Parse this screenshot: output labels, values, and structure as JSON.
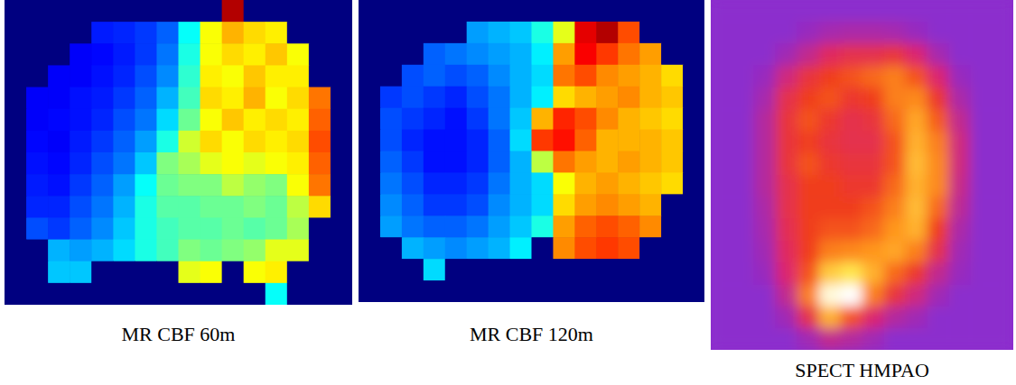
{
  "chart_data": [
    {
      "type": "heatmap",
      "title": "MR CBF 60m",
      "tick_labels": false,
      "color_range": [
        0,
        100
      ],
      "cells": [
        [
          0,
          0,
          0,
          0,
          0,
          0,
          0,
          0,
          0,
          0,
          95,
          0,
          0,
          0,
          0,
          0
        ],
        [
          0,
          0,
          0,
          0,
          15,
          16,
          18,
          22,
          38,
          62,
          70,
          66,
          64,
          0,
          0,
          0
        ],
        [
          0,
          0,
          0,
          12,
          13,
          15,
          18,
          24,
          40,
          62,
          66,
          64,
          68,
          62,
          0,
          0
        ],
        [
          0,
          0,
          12,
          12,
          14,
          16,
          20,
          26,
          42,
          64,
          62,
          68,
          64,
          64,
          0,
          0
        ],
        [
          0,
          12,
          12,
          14,
          15,
          18,
          22,
          30,
          44,
          66,
          64,
          70,
          62,
          66,
          76,
          0
        ],
        [
          0,
          12,
          13,
          14,
          16,
          20,
          24,
          34,
          48,
          62,
          68,
          64,
          66,
          64,
          78,
          0
        ],
        [
          0,
          13,
          12,
          15,
          18,
          22,
          28,
          40,
          58,
          66,
          62,
          66,
          64,
          66,
          80,
          0
        ],
        [
          0,
          14,
          13,
          16,
          20,
          24,
          32,
          50,
          54,
          60,
          62,
          60,
          62,
          64,
          78,
          0
        ],
        [
          0,
          15,
          14,
          18,
          22,
          28,
          38,
          48,
          50,
          50,
          56,
          52,
          50,
          62,
          76,
          0
        ],
        [
          0,
          16,
          16,
          20,
          24,
          30,
          40,
          46,
          46,
          48,
          48,
          50,
          48,
          56,
          66,
          0
        ],
        [
          0,
          20,
          18,
          22,
          26,
          32,
          40,
          44,
          46,
          46,
          48,
          46,
          48,
          54,
          0,
          0
        ],
        [
          0,
          0,
          30,
          28,
          30,
          34,
          40,
          44,
          50,
          48,
          50,
          52,
          60,
          60,
          0,
          0
        ],
        [
          0,
          0,
          32,
          32,
          0,
          0,
          0,
          0,
          60,
          62,
          0,
          62,
          64,
          0,
          0,
          0
        ],
        [
          0,
          0,
          0,
          0,
          0,
          0,
          0,
          0,
          0,
          0,
          0,
          0,
          38,
          0,
          0,
          0
        ]
      ]
    },
    {
      "type": "heatmap",
      "title": "MR CBF 120m",
      "tick_labels": false,
      "color_range": [
        0,
        100
      ],
      "cells": [
        [
          0,
          0,
          0,
          0,
          0,
          0,
          0,
          0,
          0,
          0,
          0,
          0,
          0,
          0,
          0,
          0
        ],
        [
          0,
          0,
          0,
          0,
          0,
          28,
          30,
          32,
          40,
          60,
          90,
          95,
          80,
          0,
          0,
          0
        ],
        [
          0,
          0,
          0,
          22,
          24,
          26,
          28,
          30,
          36,
          72,
          88,
          82,
          76,
          72,
          0,
          0
        ],
        [
          0,
          0,
          20,
          22,
          20,
          22,
          26,
          30,
          34,
          76,
          80,
          74,
          72,
          70,
          66,
          0
        ],
        [
          0,
          18,
          20,
          18,
          16,
          20,
          24,
          30,
          36,
          66,
          70,
          72,
          74,
          70,
          68,
          0
        ],
        [
          0,
          20,
          18,
          16,
          14,
          18,
          24,
          32,
          70,
          84,
          80,
          74,
          70,
          68,
          66,
          0
        ],
        [
          0,
          20,
          16,
          14,
          14,
          16,
          22,
          34,
          82,
          86,
          78,
          70,
          70,
          70,
          68,
          0
        ],
        [
          0,
          22,
          18,
          14,
          14,
          16,
          22,
          30,
          56,
          76,
          72,
          70,
          72,
          70,
          68,
          0
        ],
        [
          0,
          24,
          20,
          16,
          16,
          18,
          24,
          30,
          34,
          62,
          70,
          72,
          70,
          68,
          66,
          0
        ],
        [
          0,
          26,
          22,
          18,
          18,
          20,
          26,
          30,
          34,
          66,
          72,
          74,
          72,
          70,
          0,
          0
        ],
        [
          0,
          28,
          24,
          22,
          22,
          24,
          28,
          32,
          40,
          72,
          78,
          80,
          78,
          74,
          0,
          0
        ],
        [
          0,
          0,
          30,
          28,
          26,
          28,
          30,
          36,
          0,
          74,
          80,
          82,
          80,
          0,
          0,
          0
        ],
        [
          0,
          0,
          0,
          34,
          0,
          0,
          0,
          0,
          0,
          0,
          0,
          0,
          0,
          0,
          0,
          0
        ],
        [
          0,
          0,
          0,
          0,
          0,
          0,
          0,
          0,
          0,
          0,
          0,
          0,
          0,
          0,
          0,
          0
        ]
      ]
    },
    {
      "type": "heatmap",
      "title": "SPECT HMPAO",
      "tick_labels": false,
      "color_range": [
        0,
        100
      ],
      "cells": [
        [
          0,
          0,
          0,
          0,
          0,
          0,
          0,
          0,
          0,
          0,
          0,
          0,
          0,
          0
        ],
        [
          0,
          0,
          0,
          0,
          5,
          10,
          12,
          12,
          10,
          5,
          0,
          0,
          0,
          0
        ],
        [
          0,
          0,
          0,
          8,
          20,
          35,
          40,
          40,
          45,
          30,
          10,
          0,
          0,
          0
        ],
        [
          0,
          0,
          5,
          25,
          45,
          55,
          60,
          65,
          70,
          60,
          30,
          5,
          0,
          0
        ],
        [
          0,
          0,
          10,
          40,
          55,
          60,
          50,
          55,
          70,
          72,
          50,
          12,
          0,
          0
        ],
        [
          0,
          0,
          15,
          45,
          60,
          50,
          40,
          45,
          65,
          78,
          62,
          20,
          0,
          0
        ],
        [
          0,
          0,
          15,
          45,
          55,
          45,
          40,
          40,
          60,
          80,
          70,
          25,
          0,
          0
        ],
        [
          0,
          0,
          15,
          45,
          60,
          50,
          45,
          45,
          60,
          82,
          72,
          25,
          0,
          0
        ],
        [
          0,
          0,
          15,
          40,
          55,
          55,
          50,
          50,
          65,
          80,
          72,
          22,
          0,
          0
        ],
        [
          0,
          0,
          12,
          40,
          55,
          55,
          55,
          60,
          70,
          82,
          65,
          18,
          0,
          0
        ],
        [
          0,
          0,
          10,
          38,
          55,
          60,
          60,
          65,
          75,
          80,
          55,
          12,
          0,
          0
        ],
        [
          0,
          0,
          8,
          35,
          55,
          70,
          72,
          75,
          78,
          70,
          40,
          8,
          0,
          0
        ],
        [
          0,
          0,
          5,
          30,
          60,
          85,
          90,
          80,
          65,
          50,
          20,
          5,
          0,
          0
        ],
        [
          0,
          0,
          0,
          20,
          70,
          98,
          100,
          70,
          45,
          25,
          8,
          0,
          0,
          0
        ],
        [
          0,
          0,
          0,
          8,
          40,
          80,
          60,
          30,
          15,
          8,
          0,
          0,
          0,
          0
        ],
        [
          0,
          0,
          0,
          0,
          8,
          20,
          15,
          8,
          0,
          0,
          0,
          0,
          0,
          0
        ]
      ]
    }
  ]
}
